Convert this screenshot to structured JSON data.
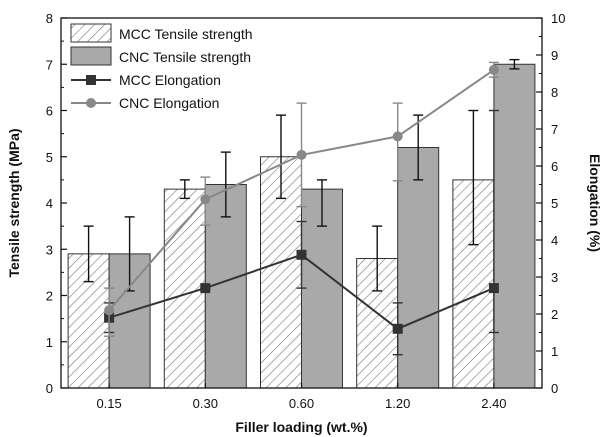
{
  "chart_data": {
    "type": "bar",
    "xlabel": "Filler loading (wt.%)",
    "ylabel": "Tensile strength (MPa)",
    "y2label": "Elongation (%)",
    "categories": [
      "0.15",
      "0.30",
      "0.60",
      "1.20",
      "2.40"
    ],
    "ylim": [
      0,
      8
    ],
    "y2lim": [
      0,
      10
    ],
    "yticks": [
      "0",
      "1",
      "2",
      "3",
      "4",
      "5",
      "6",
      "7",
      "8"
    ],
    "y2ticks": [
      "0",
      "1",
      "2",
      "3",
      "4",
      "5",
      "6",
      "7",
      "8",
      "9",
      "10"
    ],
    "bar_series": [
      {
        "name": "MCC Tensile strength",
        "style": "hatched",
        "values": [
          2.9,
          4.3,
          5.0,
          2.8,
          4.5
        ],
        "err_low": [
          2.3,
          4.1,
          4.1,
          2.1,
          3.1
        ],
        "err_high": [
          3.5,
          4.5,
          5.9,
          3.5,
          6.0
        ]
      },
      {
        "name": "CNC Tensile strength",
        "style": "solid",
        "values": [
          2.9,
          4.4,
          4.3,
          5.2,
          7.0
        ],
        "err_low": [
          2.1,
          3.7,
          3.5,
          4.5,
          6.9
        ],
        "err_high": [
          3.7,
          5.1,
          4.5,
          5.9,
          7.1
        ]
      }
    ],
    "line_series": [
      {
        "name": "MCC Elongation",
        "marker": "square",
        "color": "#333333",
        "values": [
          1.9,
          2.7,
          3.6,
          1.6,
          2.7
        ],
        "err_low": [
          1.5,
          2.7,
          2.7,
          0.9,
          1.5
        ],
        "err_high": [
          2.3,
          2.7,
          4.5,
          2.3,
          7.5
        ]
      },
      {
        "name": "CNC Elongation",
        "marker": "circle",
        "color": "#888888",
        "values": [
          2.1,
          5.1,
          6.3,
          6.8,
          8.6
        ],
        "err_low": [
          1.4,
          4.4,
          4.9,
          5.6,
          8.4
        ],
        "err_high": [
          2.7,
          5.7,
          7.7,
          7.7,
          8.8
        ]
      }
    ],
    "legend_position": "top-left",
    "grid": false
  }
}
